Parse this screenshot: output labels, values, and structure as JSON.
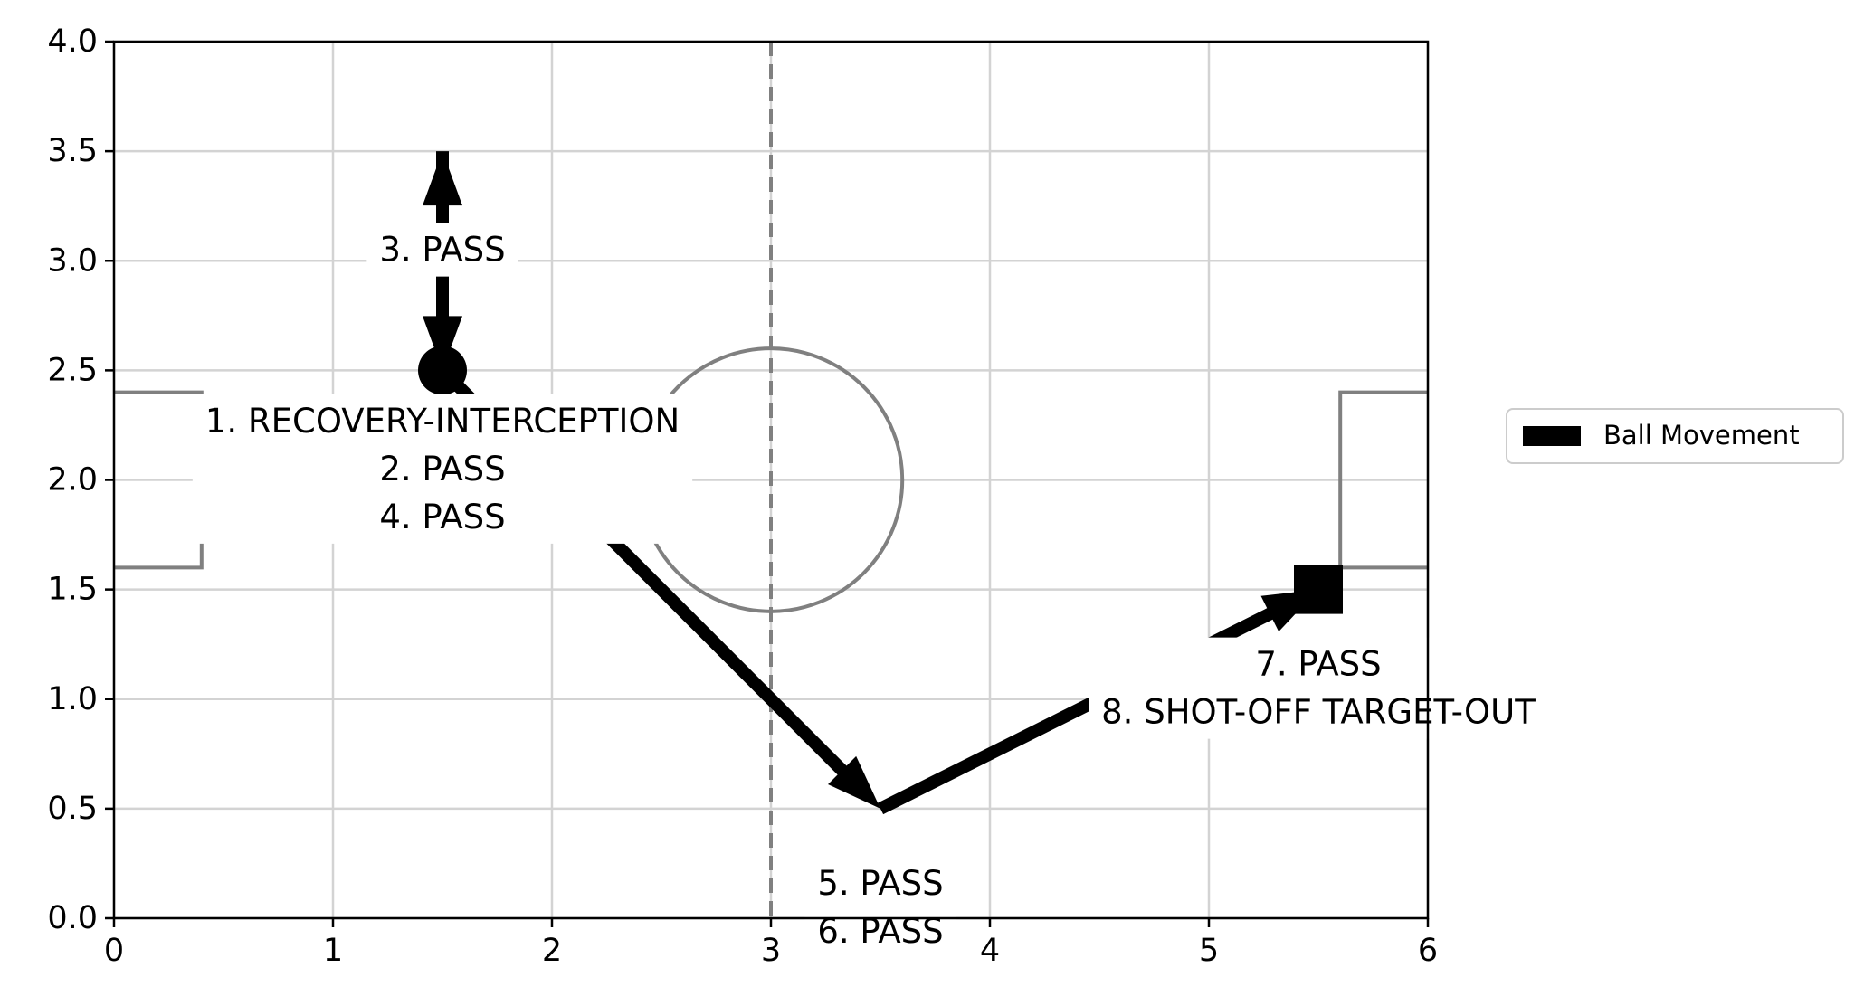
{
  "chart_data": {
    "type": "scatter",
    "title": "",
    "xlabel": "",
    "ylabel": "",
    "xlim": [
      0,
      6
    ],
    "ylim": [
      0,
      4
    ],
    "xticks": [
      "0",
      "1",
      "2",
      "3",
      "4",
      "5",
      "6"
    ],
    "yticks": [
      "0.0",
      "0.5",
      "1.0",
      "1.5",
      "2.0",
      "2.5",
      "3.0",
      "3.5",
      "4.0"
    ],
    "grid": true,
    "legend": {
      "position": "right",
      "entries": [
        "Ball Movement"
      ]
    },
    "pitch": {
      "halfway_line_x": 3,
      "center_circle": {
        "cx": 3,
        "cy": 2,
        "r": 0.6
      },
      "left_box": {
        "x0": 0,
        "x1": 0.4,
        "y0": 1.6,
        "y1": 2.4
      },
      "right_box": {
        "x0": 5.6,
        "x1": 6,
        "y0": 1.6,
        "y1": 2.4
      }
    },
    "events": [
      {
        "x": 1.5,
        "y": 2.5,
        "labels": [
          "1. RECOVERY-INTERCEPTION",
          "2. PASS",
          "4. PASS"
        ],
        "label_x": 1.5,
        "label_y": 2.05
      },
      {
        "x": 1.5,
        "y": 3.5,
        "labels": [
          "3. PASS"
        ],
        "label_x": 1.5,
        "label_y": 3.05
      },
      {
        "x": 3.5,
        "y": 0.5,
        "labels": [
          "5. PASS",
          "6. PASS"
        ],
        "label_x": 3.5,
        "label_y": 0.05
      },
      {
        "x": 5.5,
        "y": 1.5,
        "labels": [
          "7. PASS",
          "8. SHOT-OFF TARGET-OUT"
        ],
        "label_x": 5.5,
        "label_y": 1.05
      }
    ],
    "moves": [
      {
        "from": [
          1.5,
          2.5
        ],
        "to": [
          1.5,
          3.5
        ]
      },
      {
        "from": [
          1.5,
          3.5
        ],
        "to": [
          1.5,
          2.5
        ]
      },
      {
        "from": [
          1.5,
          2.5
        ],
        "to": [
          3.5,
          0.5
        ]
      },
      {
        "from": [
          3.5,
          0.5
        ],
        "to": [
          5.5,
          1.5
        ]
      }
    ],
    "start_marker": [
      1.5,
      2.5
    ],
    "end_marker": [
      5.5,
      1.5
    ],
    "colors": {
      "movement": "#000000",
      "pitch_lines": "#808080",
      "grid": "#d3d3d3",
      "axes": "#000000"
    }
  }
}
